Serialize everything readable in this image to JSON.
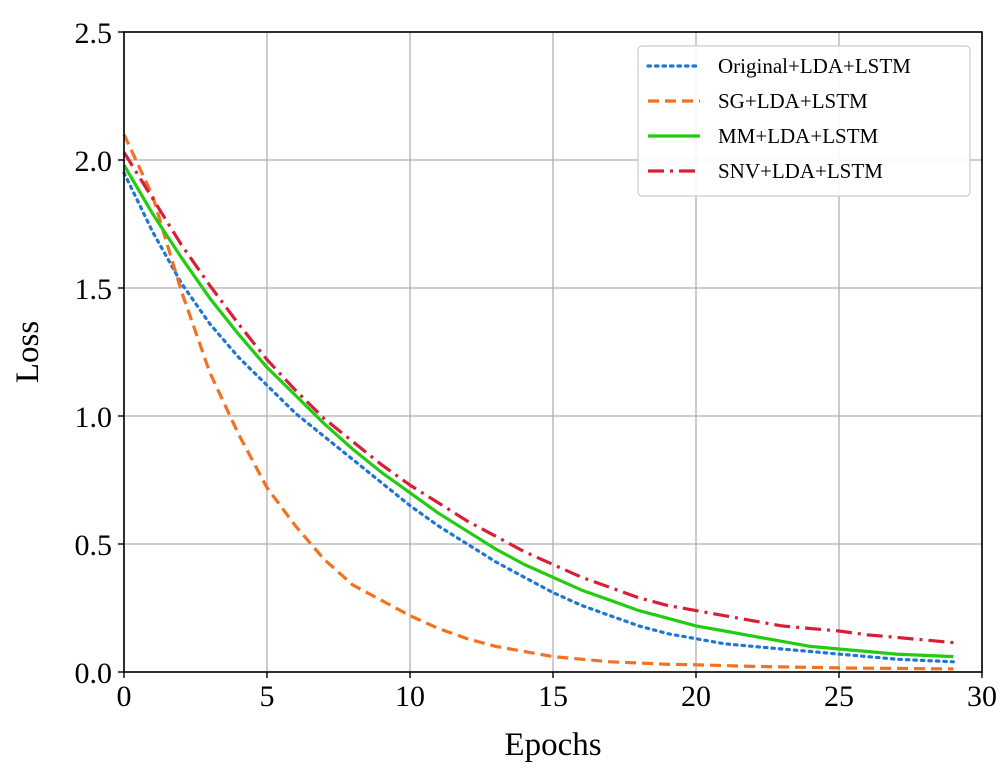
{
  "chart_data": {
    "type": "line",
    "title": "",
    "xlabel": "Epochs",
    "ylabel": "Loss",
    "xlim": [
      0,
      30
    ],
    "ylim": [
      0,
      2.5
    ],
    "xticks": [
      "0",
      "5",
      "10",
      "15",
      "20",
      "25",
      "30"
    ],
    "yticks": [
      "0.0",
      "0.5",
      "1.0",
      "1.5",
      "2.0",
      "2.5"
    ],
    "grid": true,
    "legend_position": "top-right",
    "x": [
      0,
      1,
      2,
      3,
      4,
      5,
      6,
      7,
      8,
      9,
      10,
      11,
      12,
      13,
      14,
      15,
      16,
      17,
      18,
      19,
      20,
      21,
      22,
      23,
      24,
      25,
      26,
      27,
      28,
      29
    ],
    "series": [
      {
        "name": "Original+LDA+LSTM",
        "color": "#1f77d4",
        "style": "dotted",
        "values": [
          1.95,
          1.72,
          1.52,
          1.36,
          1.23,
          1.12,
          1.01,
          0.92,
          0.83,
          0.74,
          0.65,
          0.57,
          0.5,
          0.43,
          0.37,
          0.31,
          0.26,
          0.22,
          0.18,
          0.15,
          0.13,
          0.11,
          0.1,
          0.09,
          0.08,
          0.07,
          0.06,
          0.05,
          0.045,
          0.04
        ]
      },
      {
        "name": "SG+LDA+LSTM",
        "color": "#f4711f",
        "style": "dashed",
        "values": [
          2.1,
          1.86,
          1.49,
          1.17,
          0.93,
          0.72,
          0.57,
          0.44,
          0.34,
          0.28,
          0.22,
          0.17,
          0.13,
          0.1,
          0.08,
          0.06,
          0.05,
          0.04,
          0.035,
          0.03,
          0.028,
          0.025,
          0.022,
          0.02,
          0.018,
          0.016,
          0.015,
          0.014,
          0.013,
          0.012
        ]
      },
      {
        "name": "MM+LDA+LSTM",
        "color": "#22cc11",
        "style": "solid",
        "values": [
          1.98,
          1.79,
          1.62,
          1.46,
          1.32,
          1.19,
          1.08,
          0.97,
          0.87,
          0.78,
          0.7,
          0.62,
          0.55,
          0.48,
          0.42,
          0.37,
          0.32,
          0.28,
          0.24,
          0.21,
          0.18,
          0.16,
          0.14,
          0.12,
          0.1,
          0.09,
          0.08,
          0.07,
          0.065,
          0.06
        ]
      },
      {
        "name": "SNV+LDA+LSTM",
        "color": "#d91e38",
        "style": "dashdot",
        "values": [
          2.03,
          1.85,
          1.67,
          1.51,
          1.36,
          1.22,
          1.1,
          0.99,
          0.9,
          0.81,
          0.73,
          0.66,
          0.59,
          0.53,
          0.47,
          0.42,
          0.37,
          0.33,
          0.29,
          0.26,
          0.24,
          0.22,
          0.2,
          0.18,
          0.17,
          0.16,
          0.145,
          0.135,
          0.125,
          0.115
        ]
      }
    ]
  }
}
